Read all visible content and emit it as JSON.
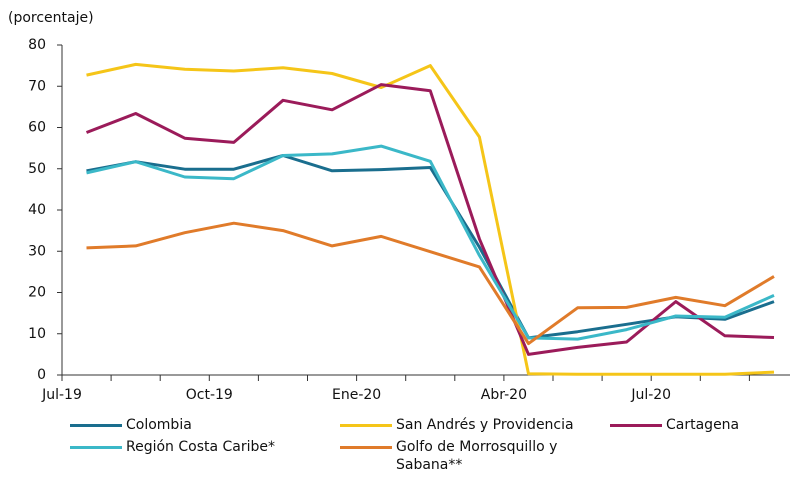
{
  "chart_data": {
    "type": "line",
    "y_label": "(porcentaje)",
    "categories": [
      "Jul-19",
      null,
      null,
      "Oct-19",
      null,
      null,
      "Ene-20",
      null,
      null,
      "Abr-20",
      null,
      null,
      "Jul-20",
      null,
      null
    ],
    "ylim": [
      0,
      80
    ],
    "yticks": [
      0,
      10,
      20,
      30,
      40,
      50,
      60,
      70,
      80
    ],
    "series": [
      {
        "name": "Colombia",
        "color": "#1a6e8e",
        "values": [
          49.5,
          51.7,
          49.9,
          49.9,
          53.2,
          49.5,
          49.8,
          50.3,
          31,
          9,
          10.5,
          12.3,
          14.1,
          13.5,
          17.8
        ]
      },
      {
        "name": "San Andrés y Providencia",
        "color": "#f5c518",
        "values": [
          72.7,
          75.3,
          74.1,
          73.7,
          74.5,
          73.1,
          69.7,
          75,
          57.7,
          0.3,
          0.2,
          0.2,
          0.2,
          0.2,
          0.7
        ]
      },
      {
        "name": "Cartagena",
        "color": "#9b1b5a",
        "values": [
          58.8,
          63.4,
          57.4,
          56.4,
          66.6,
          64.3,
          70.4,
          68.9,
          33,
          5,
          6.7,
          8,
          17.8,
          9.5,
          9.1
        ]
      },
      {
        "name": "Región Costa Caribe*",
        "color": "#3bb8c8",
        "values": [
          49,
          51.7,
          48,
          47.6,
          53.2,
          53.6,
          55.5,
          51.8,
          29,
          9,
          8.7,
          11,
          14.3,
          14,
          19.3
        ]
      },
      {
        "name": "Golfo de Morrosquillo y Sabana**",
        "color": "#e07b2a",
        "values": [
          30.8,
          31.3,
          34.5,
          36.8,
          35,
          31.3,
          33.6,
          29.9,
          26.2,
          7.6,
          16.3,
          16.4,
          18.8,
          16.8,
          23.9
        ]
      }
    ]
  }
}
